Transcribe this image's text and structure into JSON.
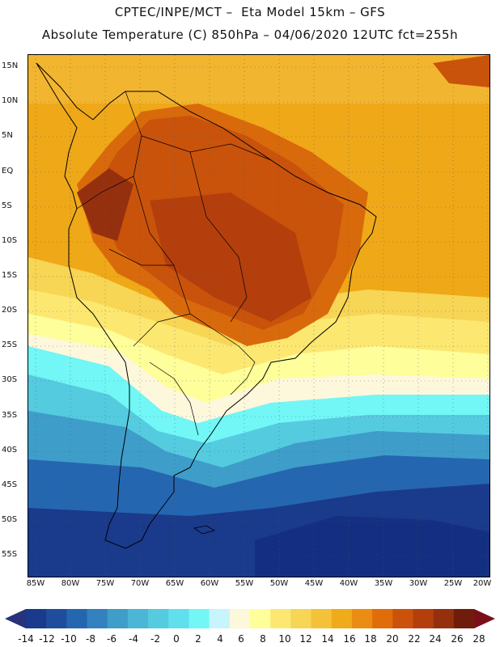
{
  "title": {
    "line1": "CPTEC/INPE/MCT –  Eta Model 15km – GFS",
    "line2": "Absolute Temperature (C) 850hPa – 04/06/2020 12UTC fct=255h"
  },
  "map": {
    "lat_labels": [
      "15N",
      "10N",
      "5N",
      "EQ",
      "5S",
      "10S",
      "15S",
      "20S",
      "25S",
      "30S",
      "35S",
      "40S",
      "45S",
      "50S",
      "55S"
    ],
    "lon_labels": [
      "85W",
      "80W",
      "75W",
      "70W",
      "65W",
      "60W",
      "55W",
      "50W",
      "45W",
      "40W",
      "35W",
      "30W",
      "25W",
      "20W"
    ]
  },
  "colorbar": {
    "labels": [
      "-14",
      "-12",
      "-10",
      "-8",
      "-6",
      "-4",
      "-2",
      "0",
      "2",
      "4",
      "6",
      "8",
      "10",
      "12",
      "14",
      "16",
      "18",
      "20",
      "22",
      "24",
      "26",
      "28"
    ],
    "colors": [
      "#1a3a8c",
      "#1f4d9e",
      "#2566b0",
      "#3381bf",
      "#3f9dc9",
      "#4bb6d6",
      "#55cbe0",
      "#5fe0ec",
      "#72f6f6",
      "#c8f4fb",
      "#fdf7dc",
      "#fefe9a",
      "#fce871",
      "#f7d555",
      "#f4c238",
      "#f0ab1a",
      "#eb8d12",
      "#e06d0a",
      "#cc520b",
      "#b43f0d",
      "#95300f",
      "#701c0b"
    ],
    "end_low": "#27337a",
    "end_high": "#7a0f1a"
  },
  "legend_colors": {
    "cold_deep": "#142f82",
    "warm_base": "#efa818",
    "hot_core": "#a8380d"
  }
}
